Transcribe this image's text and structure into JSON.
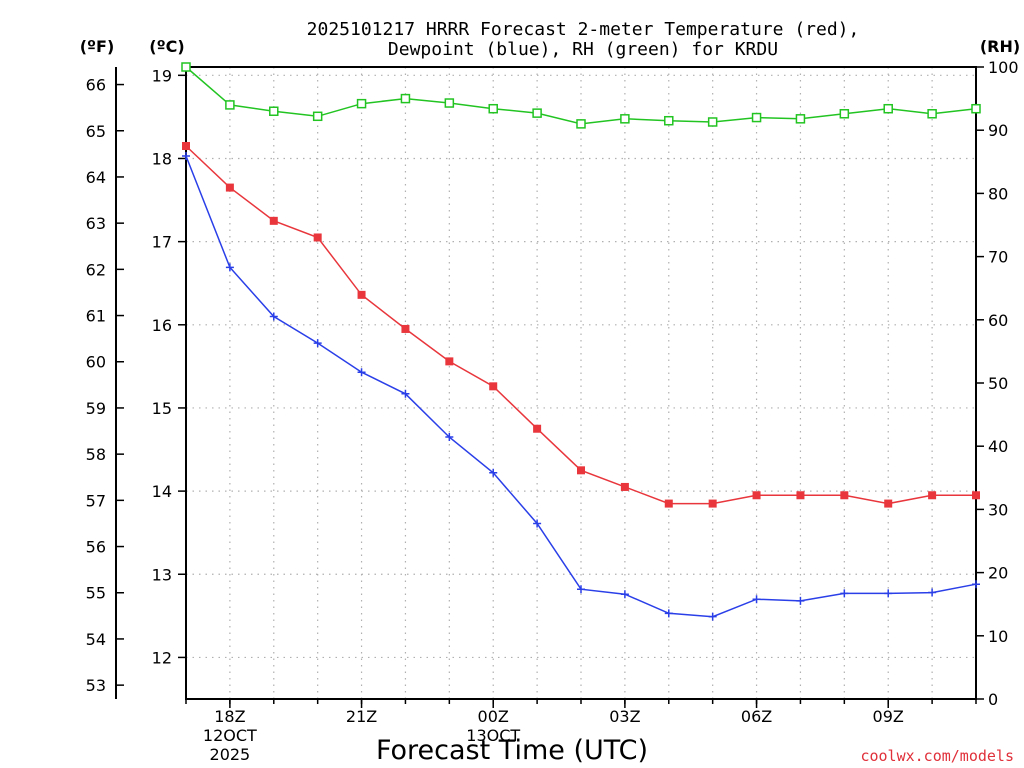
{
  "chart_data": {
    "type": "line",
    "title_line1": "2025101217 HRRR Forecast 2-meter Temperature (red),",
    "title_line2": "Dewpoint (blue), RH (green) for KRDU",
    "xlabel": "Forecast Time (UTC)",
    "credit": "coolwx.com/models",
    "units": {
      "fahrenheit": "(ºF)",
      "celsius": "(ºC)",
      "rh": "(RH)"
    },
    "x_hours": [
      17,
      18,
      19,
      20,
      21,
      22,
      23,
      24,
      25,
      26,
      27,
      28,
      29,
      30,
      31,
      32,
      33,
      34,
      35
    ],
    "x_ticks": [
      {
        "hour": 18,
        "label": "18Z",
        "date_line1": "12OCT",
        "date_line2": "2025"
      },
      {
        "hour": 21,
        "label": "21Z"
      },
      {
        "hour": 24,
        "label": "00Z",
        "date_line1": "13OCT"
      },
      {
        "hour": 27,
        "label": "03Z"
      },
      {
        "hour": 30,
        "label": "06Z"
      },
      {
        "hour": 33,
        "label": "09Z"
      }
    ],
    "x_range": [
      17,
      35
    ],
    "celsius_range": [
      11.5,
      19.1
    ],
    "celsius_ticks": [
      "12",
      "13",
      "14",
      "15",
      "16",
      "17",
      "18",
      "19"
    ],
    "fahrenheit_ticks": [
      "53",
      "54",
      "55",
      "56",
      "57",
      "58",
      "59",
      "60",
      "61",
      "62",
      "63",
      "64",
      "65",
      "66"
    ],
    "rh_range": [
      0,
      100
    ],
    "rh_ticks": [
      "0",
      "10",
      "20",
      "30",
      "40",
      "50",
      "60",
      "70",
      "80",
      "90",
      "100"
    ],
    "series": [
      {
        "name": "Temperature",
        "color": "#e8363c",
        "marker": "filled-square",
        "axis": "celsius",
        "values": [
          18.15,
          17.65,
          17.25,
          17.05,
          16.36,
          15.95,
          15.56,
          15.26,
          14.75,
          14.25,
          14.05,
          13.85,
          13.85,
          13.95,
          13.95,
          13.95,
          13.85,
          13.95,
          13.95
        ]
      },
      {
        "name": "Dewpoint",
        "color": "#2a3fe8",
        "marker": "plus",
        "axis": "celsius",
        "values": [
          18.03,
          16.69,
          16.1,
          15.78,
          15.43,
          15.17,
          14.65,
          14.22,
          13.61,
          12.82,
          12.76,
          12.53,
          12.49,
          12.7,
          12.68,
          12.77,
          12.77,
          12.78,
          12.88
        ]
      },
      {
        "name": "RH",
        "color": "#22c422",
        "marker": "open-square",
        "axis": "rh",
        "values": [
          100,
          94,
          93,
          92.2,
          94.2,
          95,
          94.3,
          93.4,
          92.7,
          91,
          91.8,
          91.5,
          91.3,
          92,
          91.8,
          92.6,
          93.4,
          92.6,
          93.4
        ]
      }
    ]
  }
}
